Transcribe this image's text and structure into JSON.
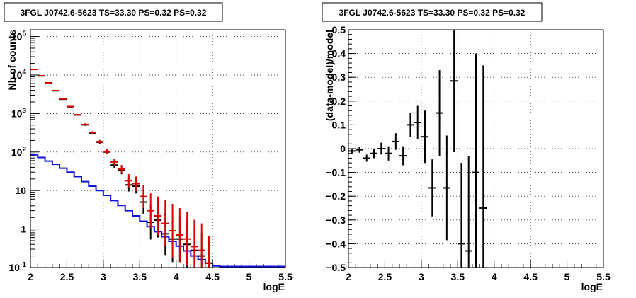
{
  "chart_data": [
    {
      "type": "step-histogram-with-errorbars",
      "title": "3FGL J0742.6-5623 TS=33.30 PS=0.32 PS=0.32",
      "xlabel": "logE",
      "ylabel": "Nb of counts",
      "xlim": [
        2,
        5.5
      ],
      "ylim": [
        0.1,
        150000
      ],
      "yscale": "log",
      "grid": true,
      "x_ticks": [
        "2",
        "2.5",
        "3",
        "3.5",
        "4",
        "4.5",
        "5",
        "5.5"
      ],
      "y_ticks": [
        {
          "value": 0.1,
          "mant": "10",
          "exp": "-1"
        },
        {
          "value": 1,
          "mant": "1",
          "exp": ""
        },
        {
          "value": 10,
          "mant": "10",
          "exp": ""
        },
        {
          "value": 100,
          "mant": "10",
          "exp": "2"
        },
        {
          "value": 1000,
          "mant": "10",
          "exp": "3"
        },
        {
          "value": 10000,
          "mant": "10",
          "exp": "4"
        },
        {
          "value": 100000,
          "mant": "10",
          "exp": "5"
        }
      ],
      "bin_edges": [
        2.0,
        2.1,
        2.2,
        2.3,
        2.4,
        2.5,
        2.6,
        2.7,
        2.8,
        2.9,
        3.0,
        3.1,
        3.2,
        3.3,
        3.4,
        3.5,
        3.6,
        3.7,
        3.8,
        3.9,
        4.0,
        4.1,
        4.2,
        4.3,
        4.4,
        4.5,
        4.6,
        4.7,
        4.8,
        4.9,
        5.0,
        5.1,
        5.2,
        5.3,
        5.4,
        5.5
      ],
      "series": [
        {
          "color": "#1010dd",
          "style": "step",
          "values": [
            85,
            72,
            58,
            48,
            38,
            30,
            23,
            17,
            13,
            10,
            7.5,
            5.5,
            4.1,
            3.0,
            2.2,
            1.6,
            1.15,
            0.85,
            0.63,
            0.48,
            0.36,
            0.27,
            0.2,
            0.16,
            0.13,
            0.11,
            0.1,
            0.1,
            0.1,
            0.1,
            0.1,
            0.1,
            0.1,
            0.1,
            0.1
          ]
        },
        {
          "color": "#000000",
          "style": "errorbar",
          "x": [
            2.05,
            2.15,
            2.25,
            2.35,
            2.45,
            2.55,
            2.65,
            2.75,
            2.85,
            2.95,
            3.05,
            3.15,
            3.25,
            3.35,
            3.45,
            3.55,
            3.65,
            3.75,
            3.85,
            3.95,
            4.05,
            4.15,
            4.25,
            4.35,
            4.45
          ],
          "y": [
            14000,
            9500,
            6200,
            3900,
            2350,
            1500,
            920,
            510,
            310,
            180,
            100,
            46,
            34,
            14,
            13,
            5,
            1.5,
            1.7,
            0.75,
            0.55,
            0.55,
            0.4,
            0.28,
            0.2,
            0.13
          ],
          "err": [
            0.006,
            0.006,
            0.008,
            0.01,
            0.012,
            0.016,
            0.02,
            0.028,
            0.035,
            0.045,
            0.06,
            0.09,
            0.11,
            0.17,
            0.19,
            0.3,
            0.45,
            0.45,
            0.55,
            0.6,
            0.6,
            0.6,
            0.6,
            0.6,
            0.6
          ]
        },
        {
          "color": "#dd0000",
          "style": "errorbar",
          "x": [
            2.05,
            2.15,
            2.25,
            2.35,
            2.45,
            2.55,
            2.65,
            2.75,
            2.85,
            2.95,
            3.05,
            3.15,
            3.25,
            3.35,
            3.45,
            3.55,
            3.65,
            3.75,
            3.85,
            3.95,
            4.05,
            4.15,
            4.25,
            4.35,
            4.45
          ],
          "y": [
            14000,
            9600,
            6300,
            3950,
            2400,
            1520,
            930,
            520,
            320,
            185,
            103,
            55,
            36,
            18,
            15,
            7,
            3,
            2.2,
            1.4,
            0.9,
            0.7,
            0.55,
            0.35,
            0.28,
            0.13
          ],
          "err": [
            0.006,
            0.006,
            0.008,
            0.01,
            0.012,
            0.016,
            0.02,
            0.028,
            0.035,
            0.045,
            0.06,
            0.09,
            0.11,
            0.17,
            0.19,
            0.3,
            0.45,
            0.5,
            0.6,
            0.7,
            0.7,
            0.7,
            0.7,
            0.7,
            0.7
          ]
        }
      ]
    },
    {
      "type": "scatter-with-errorbars",
      "title": "3FGL J0742.6-5623 TS=33.30 PS=0.32 PS=0.32",
      "xlabel": "logE",
      "ylabel": "(data-model)/model",
      "xlim": [
        2,
        5.5
      ],
      "ylim": [
        -0.5,
        0.5
      ],
      "grid": true,
      "x_ticks": [
        "2",
        "2.5",
        "3",
        "3.5",
        "4",
        "4.5",
        "5",
        "5.5"
      ],
      "y_ticks": [
        "-0.5",
        "-0.4",
        "-0.3",
        "-0.2",
        "-0.1",
        "0",
        "0.1",
        "0.2",
        "0.3",
        "0.4",
        "0.5"
      ],
      "x": [
        2.05,
        2.15,
        2.25,
        2.35,
        2.45,
        2.55,
        2.65,
        2.75,
        2.85,
        2.95,
        3.05,
        3.15,
        3.25,
        3.35,
        3.45,
        3.55,
        3.65,
        3.75,
        3.85
      ],
      "y": [
        -0.01,
        -0.005,
        -0.04,
        -0.02,
        0.0,
        -0.02,
        0.03,
        -0.03,
        0.1,
        0.11,
        0.05,
        -0.165,
        0.15,
        -0.165,
        0.285,
        -0.4,
        -0.43,
        -0.1,
        -0.25
      ],
      "yerr": [
        0.01,
        0.012,
        0.015,
        0.02,
        0.025,
        0.03,
        0.035,
        0.04,
        0.05,
        0.07,
        0.11,
        0.12,
        0.18,
        0.22,
        0.3,
        0.34,
        0.4,
        0.5,
        0.6
      ]
    }
  ]
}
